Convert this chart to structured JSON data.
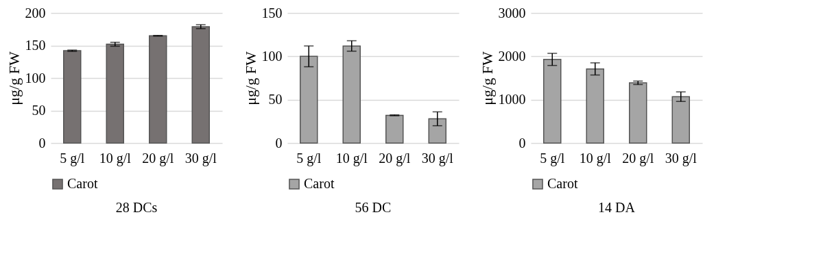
{
  "chart_data": [
    {
      "type": "bar",
      "title": "28 DCs",
      "ylabel": "μg/g FW",
      "categories": [
        "5 g/l",
        "10 g/l",
        "20 g/l",
        "30 g/l"
      ],
      "series": [
        {
          "name": "Carot",
          "color": "#767171",
          "values": [
            142,
            152,
            165,
            179
          ],
          "errors": [
            1,
            3,
            0.5,
            3
          ]
        }
      ],
      "ylim": [
        0,
        200
      ],
      "yticks": [
        0,
        50,
        100,
        150,
        200
      ],
      "grid": "y",
      "legend": "bottom"
    },
    {
      "type": "bar",
      "title": "56 DC",
      "ylabel": "μg/g FW",
      "categories": [
        "5 g/l",
        "10 g/l",
        "20 g/l",
        "30 g/l"
      ],
      "series": [
        {
          "name": "Carot",
          "color": "#a5a5a5",
          "values": [
            100,
            112,
            32,
            28
          ],
          "errors": [
            12,
            6,
            0.5,
            8
          ]
        }
      ],
      "ylim": [
        0,
        150
      ],
      "yticks": [
        0,
        50,
        100,
        150
      ],
      "grid": "y",
      "legend": "bottom"
    },
    {
      "type": "bar",
      "title": "14 DA",
      "ylabel": "μg/g FW",
      "categories": [
        "5 g/l",
        "10 g/l",
        "20 g/l",
        "30 g/l"
      ],
      "series": [
        {
          "name": "Carot",
          "color": "#a5a5a5",
          "values": [
            1930,
            1710,
            1390,
            1070
          ],
          "errors": [
            140,
            140,
            40,
            110
          ]
        }
      ],
      "ylim": [
        0,
        3000
      ],
      "yticks": [
        0,
        1000,
        2000,
        3000
      ],
      "grid": "y",
      "legend": "bottom"
    }
  ]
}
